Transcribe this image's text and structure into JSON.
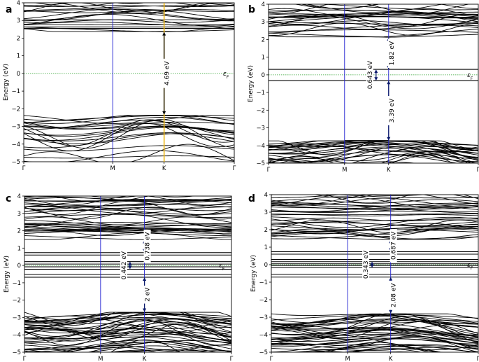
{
  "chart_data": [
    {
      "panel": "a",
      "type": "line",
      "ylabel": "Energy (eV)",
      "ylim": [
        -5,
        4
      ],
      "yticks": [
        4,
        3,
        2,
        1,
        0,
        -1,
        -2,
        -3,
        -4,
        -5
      ],
      "kpoints": [
        {
          "label": "Γ",
          "x": 0
        },
        {
          "label": "M",
          "x": 0.4226
        },
        {
          "label": "K",
          "x": 0.6667
        },
        {
          "label": "Γ",
          "x": 1.0
        }
      ],
      "fermi_label": "ε_F",
      "fermi_level": 0,
      "gaps": [
        {
          "value_label": "4.69 eV",
          "from": -2.34,
          "to": 2.35,
          "at_kpoint": "K"
        }
      ],
      "bands": {
        "valence_max": -2.34,
        "conduction_min": 2.35,
        "flat_levels": [
          2.55,
          2.63
        ]
      },
      "seed": 11
    },
    {
      "panel": "b",
      "type": "line",
      "ylabel": "Energy (eV)",
      "ylim": [
        -5,
        4
      ],
      "yticks": [
        4,
        3,
        2,
        1,
        0,
        -1,
        -2,
        -3,
        -4,
        -5
      ],
      "kpoints": [
        {
          "label": "Γ",
          "x": 0
        },
        {
          "label": "M",
          "x": 0.3626
        },
        {
          "label": "K",
          "x": 0.5726
        },
        {
          "label": "Γ",
          "x": 1.0
        }
      ],
      "fermi_label": "ε_F",
      "fermi_level": 0,
      "gaps": [
        {
          "value_label": "1.82 eV",
          "from": 0.31,
          "to": 2.13,
          "at_kpoint": "K"
        },
        {
          "value_label": "0.643 eV",
          "from": -0.33,
          "to": 0.31,
          "at_kpoint": "K",
          "offset": -0.06
        },
        {
          "value_label": "3.39 eV",
          "from": -3.72,
          "to": -0.33,
          "at_kpoint": "K"
        }
      ],
      "bands": {
        "valence_max": -3.72,
        "conduction_min": 2.13,
        "flat_levels": [
          0.31,
          -0.33
        ],
        "step_level": -3.72
      },
      "seed": 23
    },
    {
      "panel": "c",
      "type": "line",
      "ylabel": "Energy (eV)",
      "ylim": [
        -5,
        4
      ],
      "yticks": [
        4,
        3,
        2,
        1,
        0,
        -1,
        -2,
        -3,
        -4,
        -5
      ],
      "kpoints": [
        {
          "label": "Γ",
          "x": 0
        },
        {
          "label": "M",
          "x": 0.3677
        },
        {
          "label": "K",
          "x": 0.5797
        },
        {
          "label": "Γ",
          "x": 1.0
        }
      ],
      "fermi_label": "ε_F",
      "fermi_level": 0,
      "gaps": [
        {
          "value_label": "0.738 eV",
          "from": 0.74,
          "to": 1.48,
          "at_kpoint": "K"
        },
        {
          "value_label": "0.442 eV",
          "from": -0.22,
          "to": 0.22,
          "at_kpoint": "K",
          "offset": -0.07
        },
        {
          "value_label": "2 eV",
          "from": -2.68,
          "to": -0.68,
          "at_kpoint": "K"
        }
      ],
      "bands": {
        "valence_max": -2.68,
        "conduction_min": 1.48,
        "flat_levels": [
          0.74,
          0.6,
          0.22,
          0.08,
          -0.08,
          -0.22,
          -0.52,
          -0.68
        ]
      },
      "seed": 37
    },
    {
      "panel": "d",
      "type": "line",
      "ylabel": "Energy (eV)",
      "ylim": [
        -5,
        4
      ],
      "yticks": [
        4,
        3,
        2,
        1,
        0,
        -1,
        -2,
        -3,
        -4,
        -5
      ],
      "kpoints": [
        {
          "label": "Γ",
          "x": 0
        },
        {
          "label": "M",
          "x": 0.3687
        },
        {
          "label": "K",
          "x": 0.5767
        },
        {
          "label": "Γ",
          "x": 1.0
        }
      ],
      "fermi_label": "ε_F",
      "fermi_level": 0,
      "gaps": [
        {
          "value_label": "0.687 eV",
          "from": 0.74,
          "to": 1.43,
          "at_kpoint": "K"
        },
        {
          "value_label": "0.343 eV",
          "from": -0.17,
          "to": 0.17,
          "at_kpoint": "K",
          "offset": -0.09
        },
        {
          "value_label": "2.08 eV",
          "from": -2.79,
          "to": -0.71,
          "at_kpoint": "K"
        }
      ],
      "bands": {
        "valence_max": -2.79,
        "conduction_min": 1.43,
        "flat_levels": [
          0.74,
          0.6,
          0.3,
          0.17,
          0.05,
          -0.05,
          -0.17,
          -0.55,
          -0.71
        ]
      },
      "seed": 53
    }
  ]
}
